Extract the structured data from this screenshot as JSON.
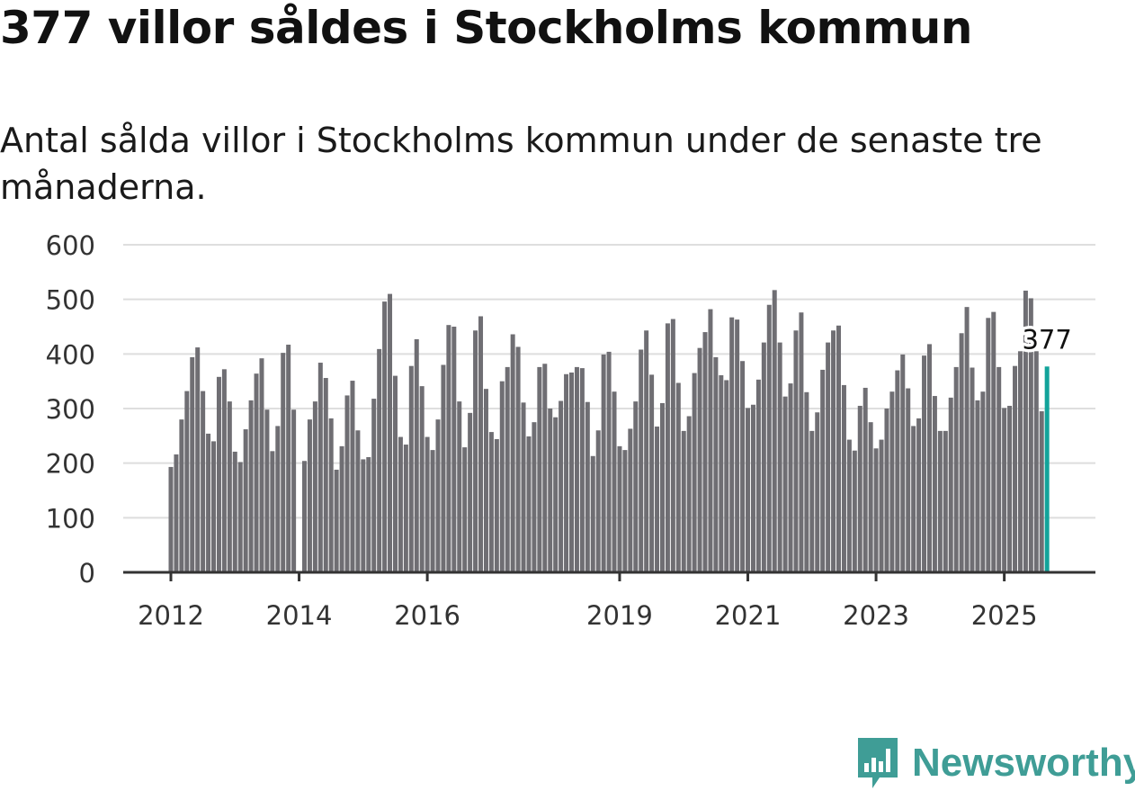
{
  "title": "377 villor såldes i Stockholms kommun",
  "subtitle": "Antal sålda villor i Stockholms kommun under de senaste tre månaderna.",
  "brand": "Newsworthy",
  "colors": {
    "bar": "#6f6e73",
    "highlight": "#12a39a",
    "grid": "#dedede",
    "axis": "#333333",
    "brand": "#3f9d96"
  },
  "chart_data": {
    "type": "bar",
    "title": "377 villor såldes i Stockholms kommun",
    "xlabel": "",
    "ylabel": "",
    "ylim": [
      0,
      600
    ],
    "yticks": [
      "0",
      "100",
      "200",
      "300",
      "400",
      "500",
      "600"
    ],
    "xticks": [
      {
        "label": "2012",
        "index": 0
      },
      {
        "label": "2014",
        "index": 24
      },
      {
        "label": "2016",
        "index": 48
      },
      {
        "label": "2019",
        "index": 84
      },
      {
        "label": "2021",
        "index": 108
      },
      {
        "label": "2023",
        "index": 132
      },
      {
        "label": "2025",
        "index": 156
      }
    ],
    "start": "2012-01",
    "frequency": "monthly",
    "grid": true,
    "highlight_label": "377",
    "values": [
      193,
      216,
      280,
      332,
      394,
      412,
      332,
      254,
      240,
      358,
      372,
      313,
      221,
      202,
      262,
      315,
      364,
      392,
      298,
      222,
      268,
      402,
      417,
      298,
      null,
      204,
      280,
      313,
      384,
      356,
      282,
      188,
      231,
      324,
      351,
      260,
      207,
      211,
      318,
      409,
      496,
      510,
      360,
      248,
      234,
      378,
      427,
      341,
      248,
      224,
      280,
      380,
      453,
      450,
      313,
      229,
      292,
      443,
      469,
      336,
      257,
      244,
      350,
      376,
      436,
      413,
      311,
      249,
      275,
      376,
      382,
      300,
      284,
      314,
      363,
      366,
      376,
      374,
      312,
      213,
      260,
      399,
      404,
      331,
      231,
      224,
      263,
      313,
      408,
      443,
      362,
      267,
      310,
      456,
      464,
      347,
      259,
      286,
      365,
      411,
      440,
      482,
      394,
      361,
      352,
      467,
      463,
      387,
      301,
      307,
      353,
      421,
      490,
      517,
      421,
      322,
      346,
      443,
      476,
      330,
      259,
      293,
      371,
      421,
      443,
      452,
      343,
      243,
      223,
      305,
      338,
      275,
      227,
      243,
      300,
      331,
      370,
      399,
      337,
      268,
      282,
      397,
      418,
      323,
      259,
      259,
      320,
      376,
      438,
      486,
      375,
      315,
      331,
      466,
      477,
      376,
      301,
      305,
      378,
      405,
      516,
      502,
      405,
      295,
      377
    ]
  }
}
